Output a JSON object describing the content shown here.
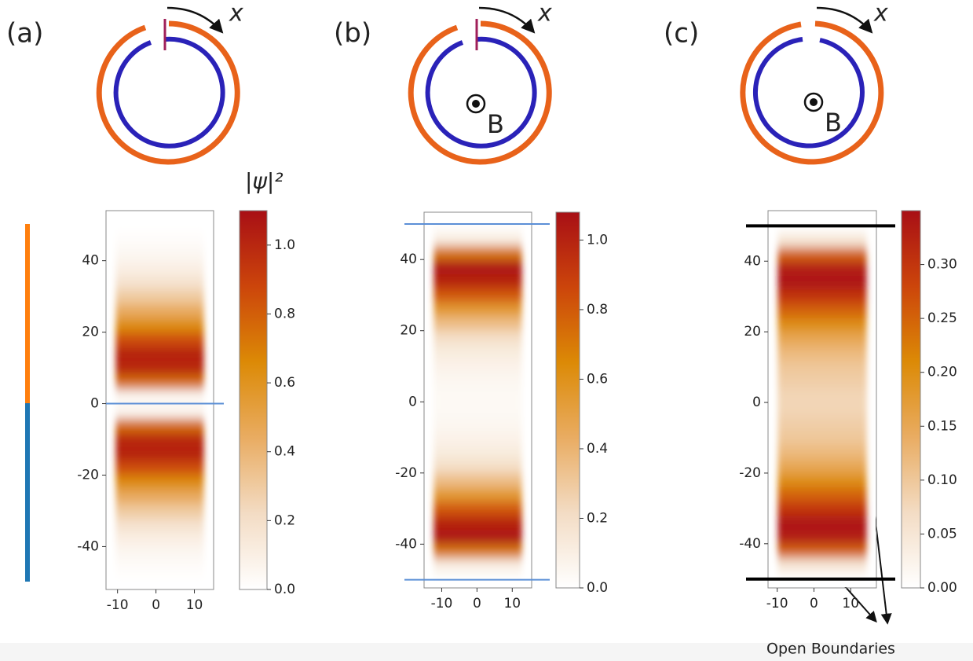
{
  "chart_data": [
    {
      "type": "heatmap",
      "label": "(a)",
      "direction_label": "x",
      "colorbar_label": "|ψ|²",
      "y": [
        -50,
        -46,
        -42,
        -38,
        -34,
        -30,
        -26,
        -22,
        -18,
        -14,
        -10,
        -6,
        -2,
        2,
        6,
        10,
        14,
        18,
        22,
        26,
        30,
        34,
        38,
        42,
        46,
        50
      ],
      "values": [
        0.0,
        0.02,
        0.05,
        0.1,
        0.18,
        0.3,
        0.45,
        0.65,
        0.85,
        1.02,
        1.0,
        0.75,
        0.05,
        0.05,
        0.75,
        1.0,
        1.02,
        0.85,
        0.65,
        0.45,
        0.3,
        0.18,
        0.1,
        0.05,
        0.02,
        0.0
      ],
      "xlim": [
        -13,
        15
      ],
      "ylim": [
        -52,
        54
      ],
      "xticks": [
        -10,
        0,
        10
      ],
      "yticks": [
        -40,
        -20,
        0,
        20,
        40
      ],
      "clim": [
        0,
        1.1
      ],
      "cticks": [
        {
          "value": 0,
          "label": "0.0"
        },
        0.2,
        0.4,
        0.6,
        0.8,
        {
          "value": 1,
          "label": "1.0"
        }
      ],
      "hlines": [
        0
      ],
      "hline_color": "#5b8fd6",
      "colormap": [
        "#ffffff",
        "#f3dcc4",
        "#e9ac62",
        "#dc8a06",
        "#cc450b",
        "#a80f15"
      ]
    },
    {
      "type": "heatmap",
      "label": "(b)",
      "direction_label": "x",
      "field_label": "B",
      "y": [
        -50,
        -46,
        -42,
        -38,
        -34,
        -30,
        -26,
        -22,
        -18,
        -14,
        -10,
        -6,
        -2,
        2,
        6,
        10,
        14,
        18,
        22,
        26,
        30,
        34,
        38,
        42,
        46,
        50
      ],
      "values": [
        0.0,
        0.1,
        0.7,
        1.05,
        1.0,
        0.8,
        0.55,
        0.35,
        0.2,
        0.12,
        0.08,
        0.05,
        0.04,
        0.04,
        0.05,
        0.08,
        0.12,
        0.2,
        0.35,
        0.55,
        0.8,
        1.0,
        1.05,
        0.7,
        0.1,
        0.0
      ],
      "xlim": [
        -15,
        15.5
      ],
      "ylim": [
        -52.3,
        53.3
      ],
      "xticks": [
        -10,
        0,
        10
      ],
      "yticks": [
        -40,
        -20,
        0,
        20,
        40
      ],
      "clim": [
        0,
        1.08
      ],
      "cticks": [
        {
          "value": 0,
          "label": "0.0"
        },
        0.2,
        0.4,
        0.6,
        0.8,
        {
          "value": 1,
          "label": "1.0"
        }
      ],
      "hlines": [
        -50,
        50
      ],
      "hline_color": "#5b8fd6",
      "colormap": [
        "#ffffff",
        "#f3dcc4",
        "#e9ac62",
        "#dc8a06",
        "#cc450b",
        "#a80f15"
      ]
    },
    {
      "type": "heatmap",
      "label": "(c)",
      "direction_label": "x",
      "field_label": "B",
      "annotation": "Open Boundaries",
      "y": [
        -50,
        -46,
        -42,
        -38,
        -34,
        -30,
        -26,
        -22,
        -18,
        -14,
        -10,
        -6,
        -2,
        2,
        6,
        10,
        14,
        18,
        22,
        26,
        30,
        34,
        38,
        42,
        46,
        50
      ],
      "values": [
        0.0,
        0.05,
        0.25,
        0.33,
        0.34,
        0.3,
        0.25,
        0.2,
        0.15,
        0.12,
        0.1,
        0.09,
        0.08,
        0.08,
        0.09,
        0.1,
        0.12,
        0.15,
        0.2,
        0.25,
        0.3,
        0.34,
        0.33,
        0.25,
        0.05,
        0.0
      ],
      "xlim": [
        -12.5,
        17
      ],
      "ylim": [
        -52.5,
        54.3
      ],
      "xticks": [
        -10,
        0,
        10
      ],
      "yticks": [
        -40,
        -20,
        0,
        20,
        40
      ],
      "clim": [
        0,
        0.35
      ],
      "cticks": [
        {
          "value": 0,
          "label": "0.00"
        },
        {
          "value": 0.05,
          "label": "0.05"
        },
        {
          "value": 0.1,
          "label": "0.10"
        },
        0.15,
        {
          "value": 0.2,
          "label": "0.20"
        },
        0.25,
        {
          "value": 0.3,
          "label": "0.30"
        }
      ],
      "hlines": [
        -50,
        50
      ],
      "hline_color": "#000000",
      "colormap": [
        "#ffffff",
        "#f3dcc4",
        "#e9ac62",
        "#dc8a06",
        "#cc450b",
        "#a80f15"
      ]
    }
  ]
}
